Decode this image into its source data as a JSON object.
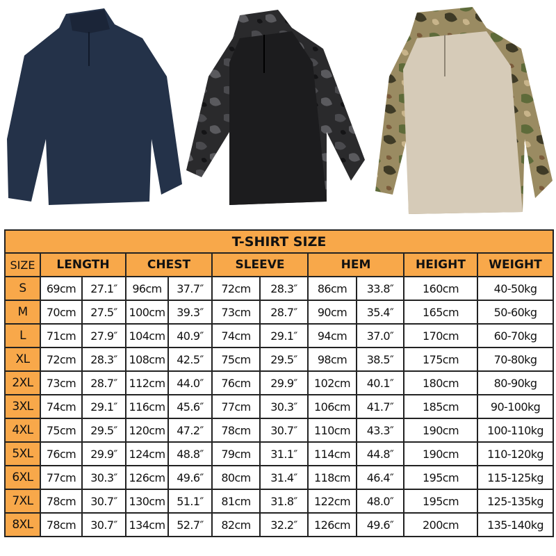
{
  "colors": {
    "header": "#f8a84a",
    "navy": "#243249",
    "black": "#1c1c1e",
    "khaki": "#d6cbb8",
    "camo": "#8a7a52"
  },
  "products": [
    {
      "name": "navy-shirt"
    },
    {
      "name": "black-camo-shirt"
    },
    {
      "name": "multicam-shirt"
    }
  ],
  "table": {
    "title": "T-SHIRT SIZE",
    "headers": [
      "SIZE",
      "LENGTH",
      "CHEST",
      "SLEEVE",
      "HEM",
      "HEIGHT",
      "WEIGHT"
    ],
    "rows": [
      [
        "S",
        "69cm",
        "27.1″",
        "96cm",
        "37.7″",
        "72cm",
        "28.3″",
        "86cm",
        "33.8″",
        "160cm",
        "40-50kg"
      ],
      [
        "M",
        "70cm",
        "27.5″",
        "100cm",
        "39.3″",
        "73cm",
        "28.7″",
        "90cm",
        "35.4″",
        "165cm",
        "50-60kg"
      ],
      [
        "L",
        "71cm",
        "27.9″",
        "104cm",
        "40.9″",
        "74cm",
        "29.1″",
        "94cm",
        "37.0″",
        "170cm",
        "60-70kg"
      ],
      [
        "XL",
        "72cm",
        "28.3″",
        "108cm",
        "42.5″",
        "75cm",
        "29.5″",
        "98cm",
        "38.5″",
        "175cm",
        "70-80kg"
      ],
      [
        "2XL",
        "73cm",
        "28.7″",
        "112cm",
        "44.0″",
        "76cm",
        "29.9″",
        "102cm",
        "40.1″",
        "180cm",
        "80-90kg"
      ],
      [
        "3XL",
        "74cm",
        "29.1″",
        "116cm",
        "45.6″",
        "77cm",
        "30.3″",
        "106cm",
        "41.7″",
        "185cm",
        "90-100kg"
      ],
      [
        "4XL",
        "75cm",
        "29.5″",
        "120cm",
        "47.2″",
        "78cm",
        "30.7″",
        "110cm",
        "43.3″",
        "190cm",
        "100-110kg"
      ],
      [
        "5XL",
        "76cm",
        "29.9″",
        "124cm",
        "48.8″",
        "79cm",
        "31.1″",
        "114cm",
        "44.8″",
        "190cm",
        "110-120kg"
      ],
      [
        "6XL",
        "77cm",
        "30.3″",
        "126cm",
        "49.6″",
        "80cm",
        "31.4″",
        "118cm",
        "46.4″",
        "195cm",
        "115-125kg"
      ],
      [
        "7XL",
        "78cm",
        "30.7″",
        "130cm",
        "51.1″",
        "81cm",
        "31.8″",
        "122cm",
        "48.0″",
        "195cm",
        "125-135kg"
      ],
      [
        "8XL",
        "78cm",
        "30.7″",
        "134cm",
        "52.7″",
        "82cm",
        "32.2″",
        "126cm",
        "49.6″",
        "200cm",
        "135-140kg"
      ]
    ]
  }
}
